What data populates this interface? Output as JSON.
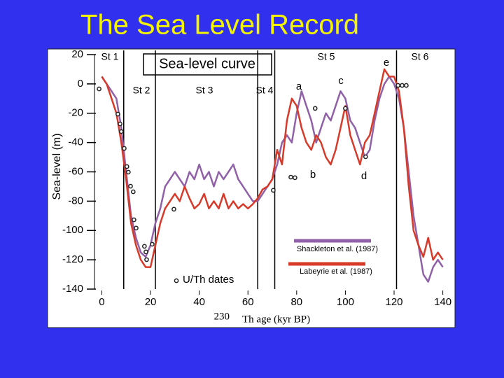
{
  "chart_data": {
    "type": "line",
    "title": "The Sea Level Record",
    "annotation_box": "Sea-level curve",
    "ylabel": "Sea-level (m)",
    "xlabel_isotope": "230",
    "xlabel": "Th age (kyr BP)",
    "xlim": [
      -3,
      145
    ],
    "ylim": [
      -140,
      20
    ],
    "xticks": [
      0,
      20,
      40,
      60,
      80,
      100,
      120,
      140
    ],
    "yticks": [
      20,
      0,
      -20,
      -40,
      -60,
      -80,
      -100,
      -120,
      -140
    ],
    "stage_boundaries": [
      9,
      22,
      64,
      71,
      121
    ],
    "stages": [
      "St 1",
      "St 2",
      "St 3",
      "St 4",
      "St 5",
      "St 6"
    ],
    "annotations": [
      "a",
      "b",
      "c",
      "d",
      "e"
    ],
    "x": [
      0,
      2,
      4,
      6,
      8,
      10,
      12,
      14,
      16,
      18,
      20,
      22,
      24,
      26,
      28,
      30,
      32,
      34,
      36,
      38,
      40,
      42,
      44,
      46,
      48,
      50,
      52,
      54,
      56,
      58,
      60,
      62,
      64,
      66,
      68,
      70,
      72,
      74,
      76,
      78,
      80,
      82,
      84,
      86,
      88,
      90,
      92,
      94,
      96,
      98,
      100,
      102,
      104,
      106,
      108,
      110,
      112,
      114,
      116,
      118,
      120,
      122,
      124,
      126,
      128,
      130,
      132,
      134,
      136,
      138,
      140
    ],
    "series": [
      {
        "name": "Shackleton et al. (1987)",
        "color": "#9060a8",
        "values": [
          5,
          0,
          -5,
          -10,
          -30,
          -60,
          -90,
          -105,
          -115,
          -118,
          -110,
          -95,
          -85,
          -70,
          -65,
          -60,
          -65,
          -70,
          -60,
          -65,
          -55,
          -65,
          -60,
          -70,
          -60,
          -65,
          -60,
          -55,
          -65,
          -70,
          -75,
          -80,
          -80,
          -75,
          -70,
          -65,
          -55,
          -40,
          -35,
          -40,
          -20,
          -5,
          -15,
          -25,
          -40,
          -30,
          -20,
          -25,
          -15,
          -5,
          -10,
          -25,
          -30,
          -40,
          -50,
          -45,
          -25,
          -10,
          0,
          5,
          0,
          -10,
          -30,
          -60,
          -90,
          -110,
          -130,
          -135,
          -125,
          -120,
          -125
        ]
      },
      {
        "name": "Labeyrie et al. (1987)",
        "color": "#d83a2a",
        "values": [
          5,
          0,
          -10,
          -20,
          -40,
          -65,
          -95,
          -110,
          -120,
          -125,
          -125,
          -110,
          -95,
          -85,
          -80,
          -75,
          -80,
          -70,
          -78,
          -85,
          -82,
          -75,
          -85,
          -80,
          -85,
          -75,
          -85,
          -80,
          -85,
          -82,
          -85,
          -82,
          -78,
          -72,
          -70,
          -65,
          -45,
          -55,
          -25,
          -10,
          -15,
          -30,
          -40,
          -45,
          -35,
          -40,
          -50,
          -55,
          -45,
          -30,
          -15,
          -35,
          -45,
          -55,
          -40,
          -35,
          -20,
          -5,
          10,
          5,
          5,
          -5,
          -30,
          -70,
          -100,
          -110,
          -118,
          -105,
          -120,
          -115,
          -120
        ]
      }
    ],
    "points": {
      "name": "U/Th dates",
      "x": [
        -1.1,
        6.6,
        7.5,
        8.0,
        9.2,
        10.3,
        10.9,
        11.8,
        12.9,
        13.2,
        14.1,
        17.5,
        18.1,
        18.4,
        20.7,
        29.6,
        70.4,
        77.6,
        79.3,
        87.6,
        100,
        108.3,
        121.6,
        123.3,
        125
      ],
      "y": [
        -3.4,
        -20.6,
        -27.3,
        -32.5,
        -44,
        -56.4,
        -60.2,
        -69.8,
        -73.6,
        -92.7,
        -98.4,
        -110.8,
        -114.6,
        -119.9,
        -109.4,
        -85.5,
        -72.6,
        -63.6,
        -64,
        -16.7,
        -16.7,
        -49.7,
        -1,
        -1,
        -1
      ]
    }
  }
}
